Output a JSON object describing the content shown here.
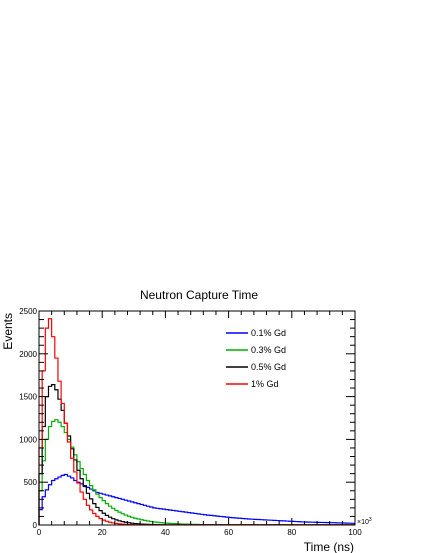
{
  "chart_data": {
    "type": "line",
    "title": "Neutron Capture Time",
    "xlabel": "Time (ns)",
    "ylabel": "Events",
    "x_multiplier_label": "×10",
    "x_multiplier_exp": "3",
    "xlim": [
      0,
      100
    ],
    "ylim": [
      0,
      2500
    ],
    "x_ticks": [
      0,
      20,
      40,
      60,
      80,
      100
    ],
    "y_ticks": [
      0,
      500,
      1000,
      1500,
      2000,
      2500
    ],
    "grid": false,
    "legend_position": "top-right",
    "bin_width": 1,
    "series": [
      {
        "name": "0.1% Gd",
        "color": "#0000ff",
        "values": [
          180,
          330,
          410,
          470,
          520,
          540,
          560,
          580,
          590,
          570,
          550,
          520,
          500,
          480,
          460,
          440,
          420,
          400,
          380,
          370,
          360,
          350,
          340,
          330,
          320,
          310,
          300,
          290,
          280,
          270,
          260,
          250,
          240,
          230,
          220,
          210,
          200,
          195,
          190,
          185,
          180,
          175,
          170,
          165,
          160,
          155,
          150,
          145,
          140,
          135,
          130,
          125,
          120,
          115,
          112,
          108,
          104,
          100,
          96,
          92,
          88,
          85,
          82,
          79,
          76,
          73,
          70,
          68,
          66,
          64,
          62,
          60,
          58,
          56,
          54,
          52,
          50,
          48,
          46,
          44,
          42,
          40,
          38,
          36,
          35,
          34,
          33,
          32,
          31,
          30,
          29,
          28,
          27,
          26,
          25,
          24,
          23,
          22,
          21,
          20
        ]
      },
      {
        "name": "0.3% Gd",
        "color": "#00b000",
        "values": [
          400,
          750,
          1000,
          1150,
          1210,
          1230,
          1200,
          1150,
          1080,
          1000,
          910,
          820,
          740,
          660,
          590,
          520,
          460,
          410,
          360,
          320,
          285,
          250,
          220,
          195,
          170,
          150,
          132,
          116,
          102,
          90,
          79,
          70,
          61,
          54,
          47,
          41,
          36,
          32,
          28,
          25,
          22,
          19,
          17,
          15,
          13,
          11,
          10,
          9,
          8,
          7,
          6,
          5,
          5,
          4,
          4,
          3,
          3,
          3,
          2,
          2,
          2,
          2,
          1,
          1,
          1,
          1,
          1,
          1,
          1,
          1,
          1,
          1,
          1,
          1,
          1,
          1,
          1,
          1,
          1,
          1,
          1,
          1,
          1,
          1,
          1,
          1,
          1,
          1,
          1,
          1,
          1,
          1,
          1,
          1,
          1,
          1,
          1,
          1,
          1,
          1
        ]
      },
      {
        "name": "0.5% Gd",
        "color": "#000000",
        "values": [
          600,
          1150,
          1500,
          1620,
          1640,
          1580,
          1470,
          1340,
          1190,
          1040,
          890,
          760,
          640,
          540,
          450,
          370,
          305,
          250,
          205,
          168,
          137,
          112,
          91,
          74,
          60,
          49,
          40,
          32,
          26,
          21,
          17,
          14,
          11,
          9,
          7,
          6,
          5,
          4,
          3,
          3,
          2,
          2,
          2,
          1,
          1,
          1,
          1,
          1,
          1,
          1,
          1,
          1,
          1,
          1,
          1,
          1,
          1,
          1,
          1,
          1,
          1,
          1,
          1,
          1,
          1,
          1,
          1,
          1,
          1,
          1,
          1,
          1,
          1,
          1,
          1,
          1,
          1,
          1,
          1,
          1,
          1,
          1,
          1,
          1,
          1,
          1,
          1,
          1,
          1,
          1,
          1,
          1,
          1,
          1,
          1,
          1,
          1,
          1,
          1,
          1
        ]
      },
      {
        "name": "1% Gd",
        "color": "#ff0000",
        "values": [
          900,
          1800,
          2300,
          2410,
          2200,
          1950,
          1680,
          1420,
          1190,
          970,
          780,
          620,
          490,
          385,
          300,
          230,
          176,
          134,
          101,
          76,
          57,
          43,
          32,
          24,
          18,
          13,
          10,
          7,
          5,
          4,
          3,
          2,
          2,
          1,
          1,
          1,
          1,
          1,
          1,
          1,
          1,
          1,
          1,
          1,
          1,
          1,
          1,
          1,
          1,
          1,
          1,
          1,
          1,
          1,
          1,
          1,
          1,
          1,
          1,
          1,
          1,
          1,
          1,
          1,
          1,
          1,
          1,
          1,
          1,
          1,
          1,
          1,
          1,
          1,
          1,
          1,
          1,
          1,
          1,
          1,
          1,
          1,
          1,
          1,
          1,
          1,
          1,
          1,
          1,
          1,
          1,
          1,
          1,
          1,
          1,
          1,
          1,
          1,
          1,
          1
        ]
      }
    ]
  }
}
